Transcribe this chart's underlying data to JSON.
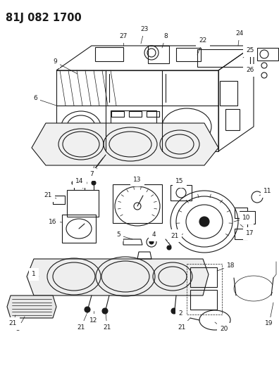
{
  "title": "81J 082 1700",
  "bg_color": "#ffffff",
  "line_color": "#1a1a1a",
  "fig_width": 3.96,
  "fig_height": 5.33,
  "dpi": 100,
  "lw_main": 0.8,
  "lw_thin": 0.5,
  "label_fontsize": 6.5,
  "title_fontsize": 10.5
}
